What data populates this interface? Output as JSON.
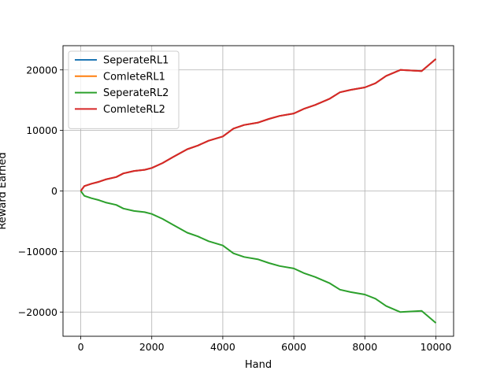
{
  "chart_data": {
    "type": "line",
    "title": "",
    "xlabel": "Hand",
    "ylabel": "Reward Earned",
    "xlim": [
      -500,
      10500
    ],
    "ylim": [
      -24000,
      24000
    ],
    "xticks": [
      0,
      2000,
      4000,
      6000,
      8000,
      10000
    ],
    "yticks": [
      -20000,
      -10000,
      0,
      10000,
      20000
    ],
    "xtick_labels": [
      "0",
      "2000",
      "4000",
      "6000",
      "8000",
      "10000"
    ],
    "ytick_labels": [
      "−20000",
      "−10000",
      "0",
      "10000",
      "20000"
    ],
    "grid": true,
    "legend_position": "top-left",
    "series": [
      {
        "name": "SeperateRL1",
        "color": "#1f77b4",
        "x": [
          0,
          100,
          200,
          300,
          500,
          700,
          1000,
          1200,
          1500,
          1800,
          2000,
          2300,
          2600,
          3000,
          3300,
          3600,
          4000,
          4300,
          4600,
          5000,
          5300,
          5600,
          6000,
          6300,
          6600,
          7000,
          7300,
          7600,
          8000,
          8300,
          8600,
          9000,
          9300,
          9600,
          9800,
          10000
        ],
        "y": [
          0,
          800,
          1000,
          1200,
          1500,
          1900,
          2300,
          2900,
          3300,
          3500,
          3800,
          4600,
          5600,
          6900,
          7500,
          8300,
          9000,
          10300,
          10900,
          11300,
          11900,
          12400,
          12800,
          13600,
          14200,
          15200,
          16300,
          16700,
          17100,
          17800,
          19000,
          20000,
          19900,
          19800,
          20800,
          21800
        ]
      },
      {
        "name": "ComleteRL1",
        "color": "#ff7f0e",
        "x": [
          0,
          100,
          200,
          300,
          500,
          700,
          1000,
          1200,
          1500,
          1800,
          2000,
          2300,
          2600,
          3000,
          3300,
          3600,
          4000,
          4300,
          4600,
          5000,
          5300,
          5600,
          6000,
          6300,
          6600,
          7000,
          7300,
          7600,
          8000,
          8300,
          8600,
          9000,
          9300,
          9600,
          9800,
          10000
        ],
        "y": [
          0,
          800,
          1000,
          1200,
          1500,
          1900,
          2300,
          2900,
          3300,
          3500,
          3800,
          4600,
          5600,
          6900,
          7500,
          8300,
          9000,
          10300,
          10900,
          11300,
          11900,
          12400,
          12800,
          13600,
          14200,
          15200,
          16300,
          16700,
          17100,
          17800,
          19000,
          20000,
          19900,
          19800,
          20800,
          21800
        ]
      },
      {
        "name": "SeperateRL2",
        "color": "#2ca02c",
        "x": [
          0,
          100,
          200,
          300,
          500,
          700,
          1000,
          1200,
          1500,
          1800,
          2000,
          2300,
          2600,
          3000,
          3300,
          3600,
          4000,
          4300,
          4600,
          5000,
          5300,
          5600,
          6000,
          6300,
          6600,
          7000,
          7300,
          7600,
          8000,
          8300,
          8600,
          9000,
          9300,
          9600,
          9800,
          10000
        ],
        "y": [
          0,
          -800,
          -1000,
          -1200,
          -1500,
          -1900,
          -2300,
          -2900,
          -3300,
          -3500,
          -3800,
          -4600,
          -5600,
          -6900,
          -7500,
          -8300,
          -9000,
          -10300,
          -10900,
          -11300,
          -11900,
          -12400,
          -12800,
          -13600,
          -14200,
          -15200,
          -16300,
          -16700,
          -17100,
          -17800,
          -19000,
          -20000,
          -19900,
          -19800,
          -20800,
          -21800
        ]
      },
      {
        "name": "ComleteRL2",
        "color": "#d62728",
        "x": [
          0,
          100,
          200,
          300,
          500,
          700,
          1000,
          1200,
          1500,
          1800,
          2000,
          2300,
          2600,
          3000,
          3300,
          3600,
          4000,
          4300,
          4600,
          5000,
          5300,
          5600,
          6000,
          6300,
          6600,
          7000,
          7300,
          7600,
          8000,
          8300,
          8600,
          9000,
          9300,
          9600,
          9800,
          10000
        ],
        "y": [
          0,
          800,
          1000,
          1200,
          1500,
          1900,
          2300,
          2900,
          3300,
          3500,
          3800,
          4600,
          5600,
          6900,
          7500,
          8300,
          9000,
          10300,
          10900,
          11300,
          11900,
          12400,
          12800,
          13600,
          14200,
          15200,
          16300,
          16700,
          17100,
          17800,
          19000,
          20000,
          19900,
          19800,
          20800,
          21800
        ]
      }
    ]
  }
}
